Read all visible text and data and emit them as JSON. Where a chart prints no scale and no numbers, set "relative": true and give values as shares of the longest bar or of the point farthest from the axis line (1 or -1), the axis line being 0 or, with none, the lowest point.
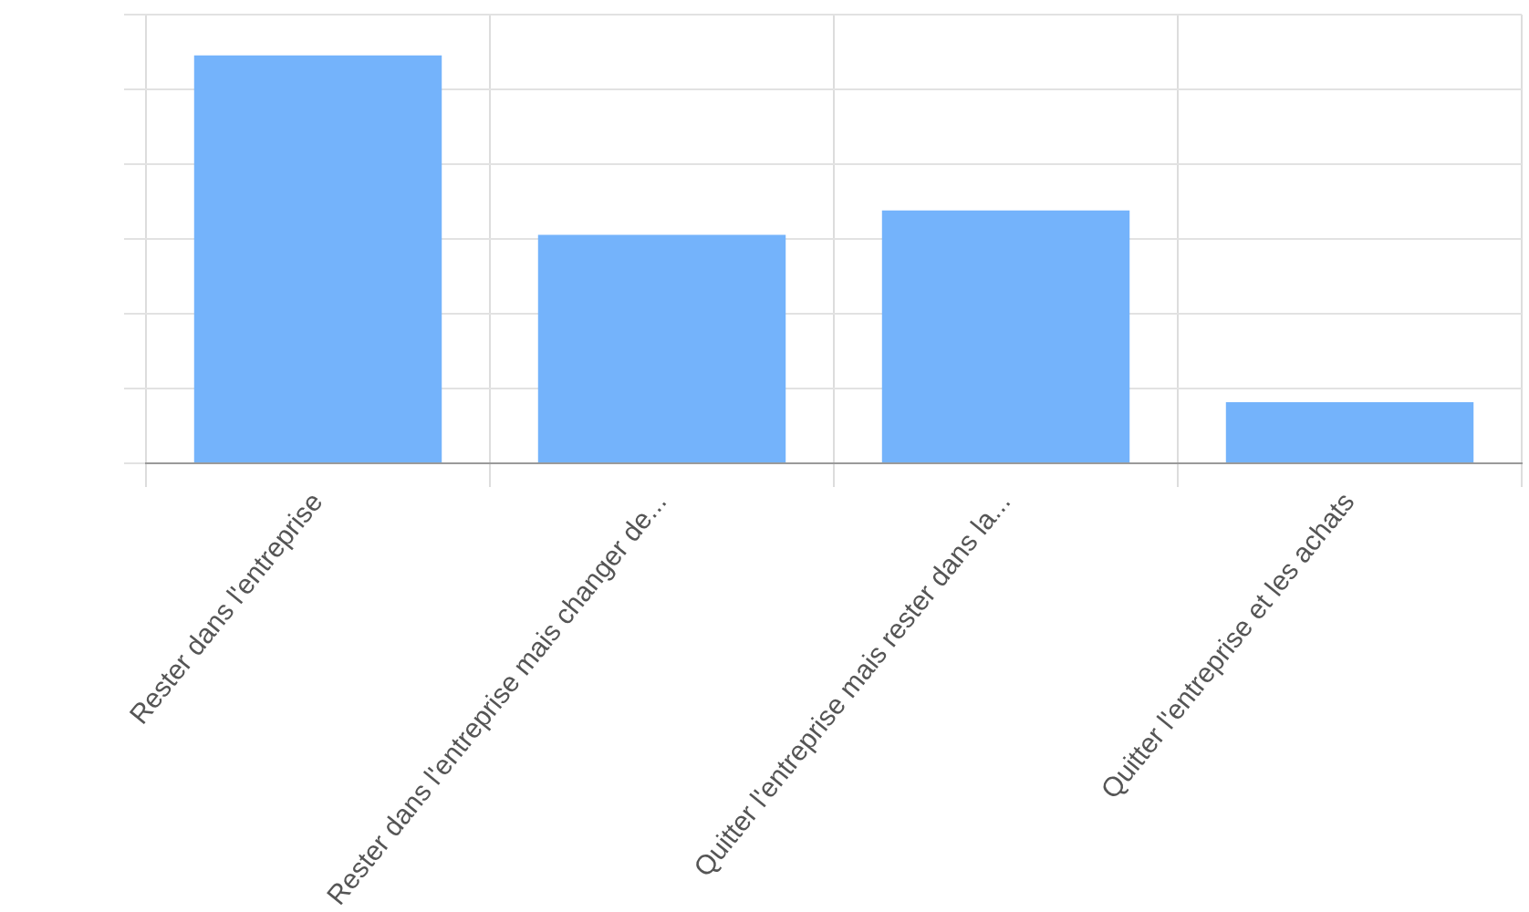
{
  "chart_data": {
    "type": "bar",
    "categories": [
      "Rester dans l'entreprise",
      "Rester dans l'entreprise mais changer de...",
      "Quitter l'entreprise mais rester dans la...",
      "Quitter l'entreprise et les achats"
    ],
    "values": [
      1,
      0.56,
      0.62,
      0.15
    ],
    "color": "#74b3fb",
    "relative": true,
    "grid": true
  }
}
